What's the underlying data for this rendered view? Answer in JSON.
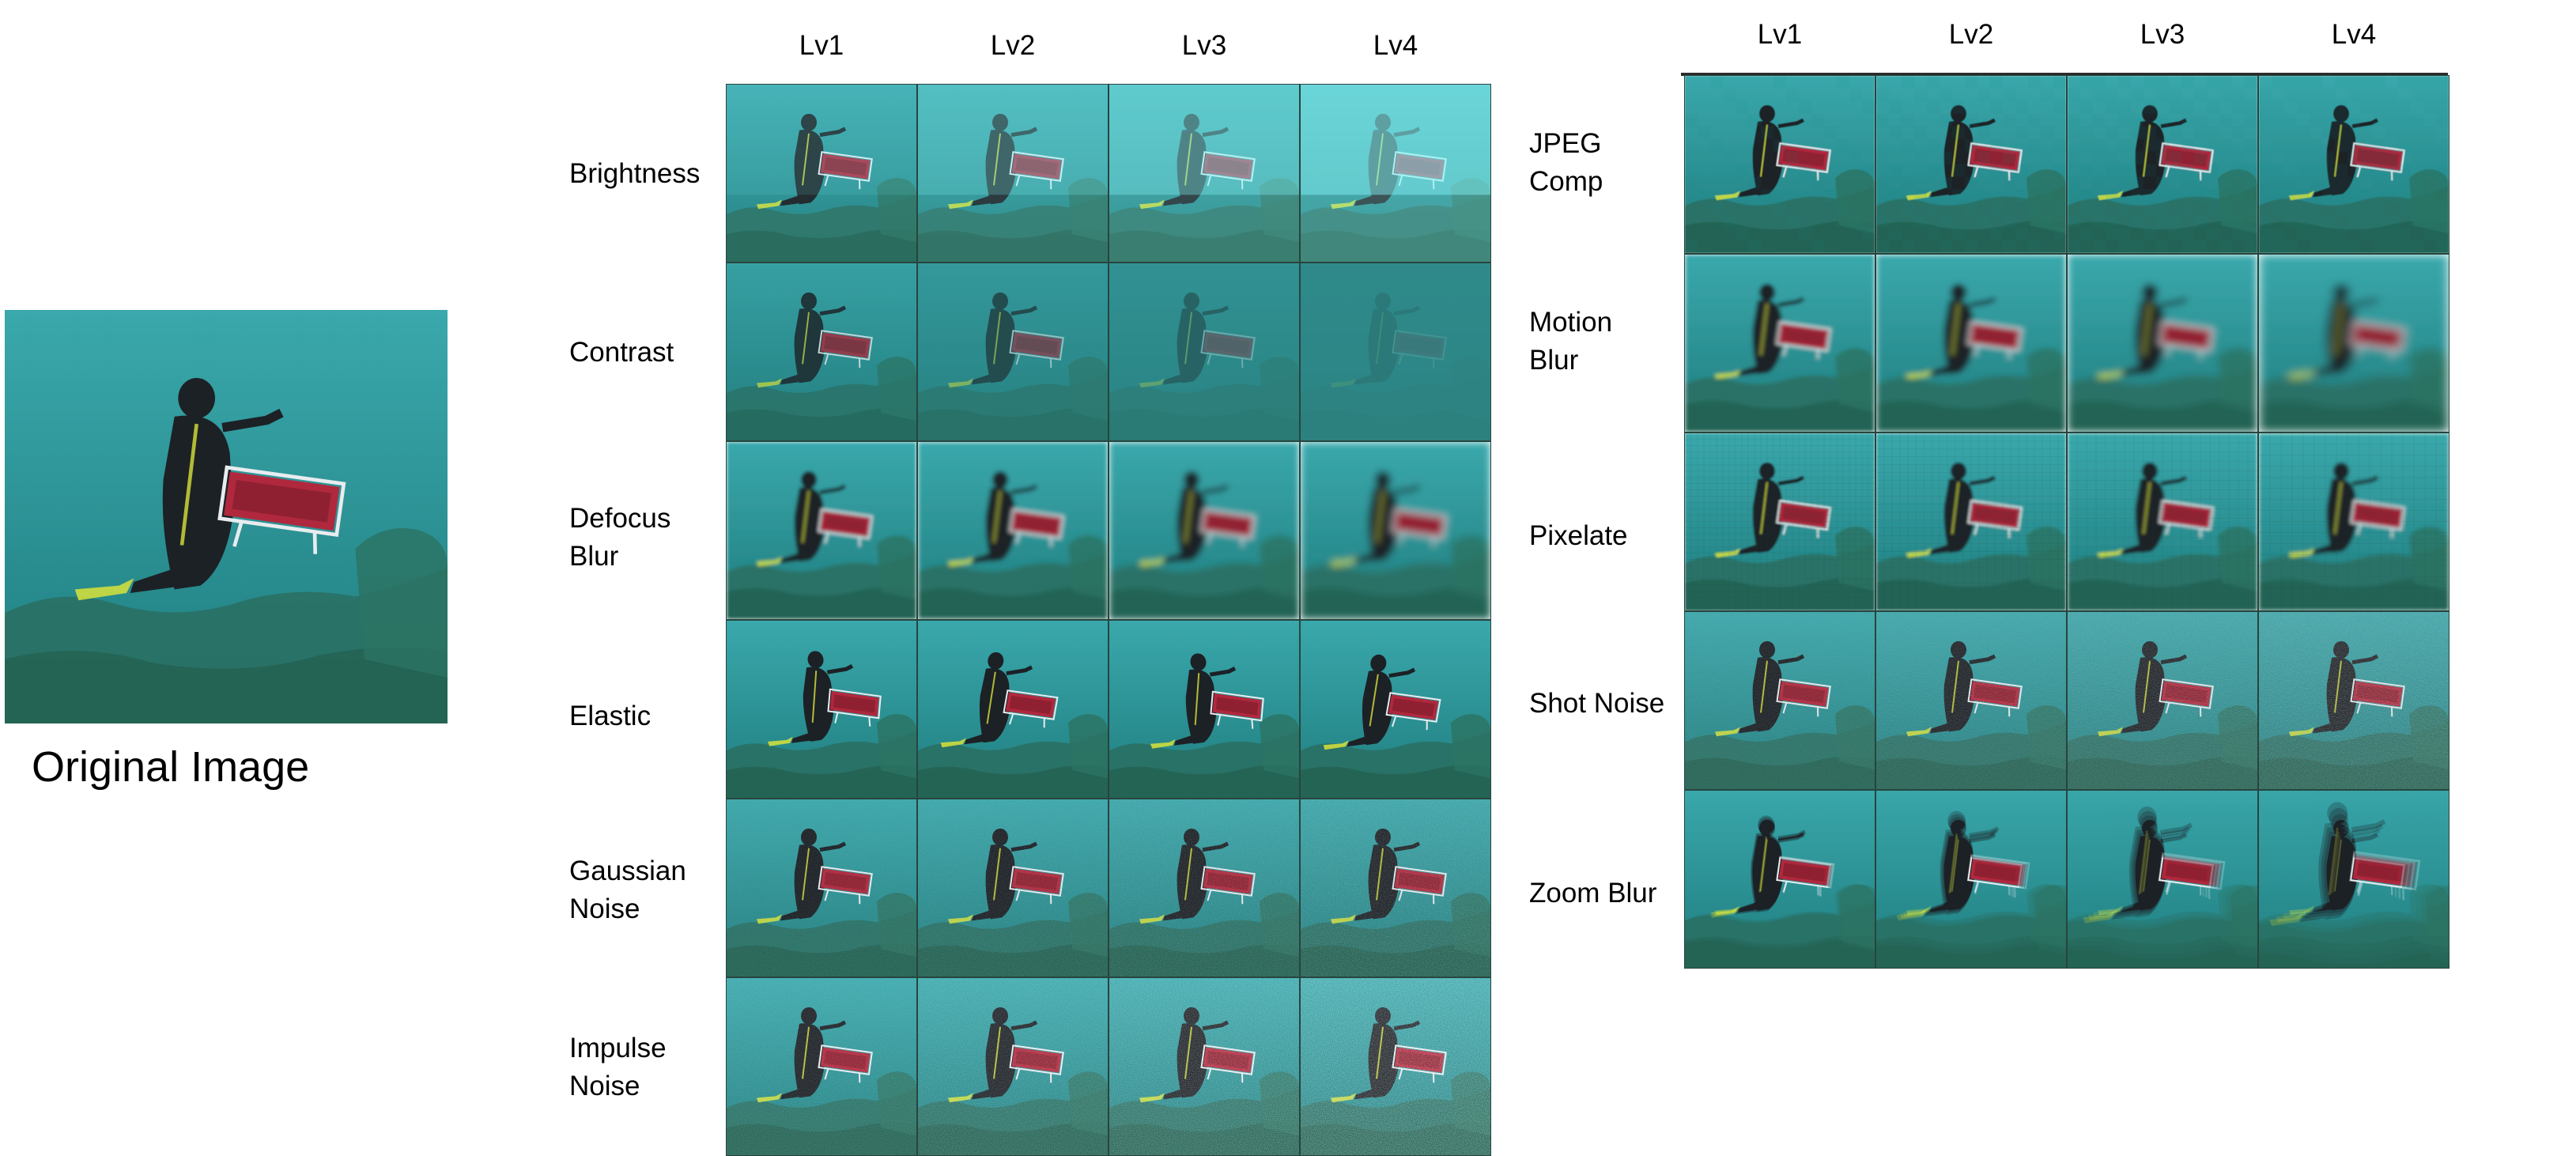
{
  "original_caption": "Original Image",
  "levels": [
    "Lv1",
    "Lv2",
    "Lv3",
    "Lv4"
  ],
  "left_grid": [
    {
      "label": "Brightness",
      "effect": "brightness"
    },
    {
      "label": "Contrast",
      "effect": "contrast"
    },
    {
      "label": "Defocus\nBlur",
      "effect": "defocus"
    },
    {
      "label": "Elastic",
      "effect": "elastic"
    },
    {
      "label": "Gaussian\nNoise",
      "effect": "gaussian"
    },
    {
      "label": "Impulse\nNoise",
      "effect": "impulse"
    }
  ],
  "right_grid": [
    {
      "label": "JPEG\nComp",
      "effect": "jpeg"
    },
    {
      "label": "Motion\nBlur",
      "effect": "motion"
    },
    {
      "label": "Pixelate",
      "effect": "pixelate"
    },
    {
      "label": "Shot Noise",
      "effect": "shot"
    },
    {
      "label": "Zoom Blur",
      "effect": "zoom"
    }
  ],
  "colors": {
    "water_top": "#3aa8ac",
    "water_bottom": "#1f7d7e",
    "reef": "#2a6f61",
    "diver": "#1c2126",
    "board": "#b0283d",
    "fin": "#d8e23a",
    "tile_border": "#27453f"
  },
  "icons": {
    "scene": "underwater-diver-scene"
  }
}
